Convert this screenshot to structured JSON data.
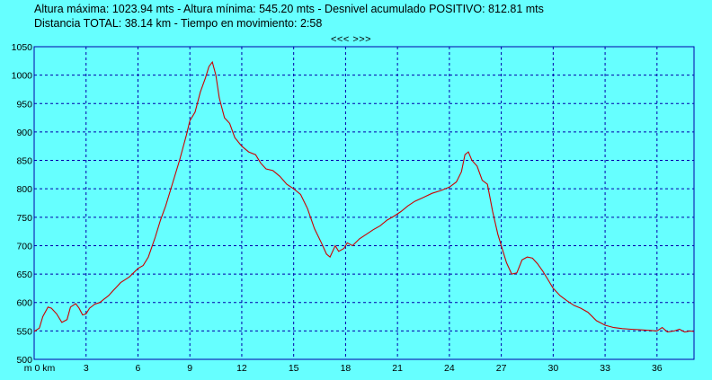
{
  "header": {
    "line1": "Altura máxima: 1023.94 mts - Altura mínima: 545.20 mts - Desnivel acumulado POSITIVO: 812.81 mts",
    "line2": "Distancia TOTAL: 38.14 km - Tiempo en movimiento: 2:58"
  },
  "nav": {
    "label": "<<< >>>"
  },
  "colors": {
    "background": "#66FFFF",
    "line": "#CC0000",
    "grid": "#0000AA"
  },
  "chart_data": {
    "type": "line",
    "title": "",
    "xlabel": "",
    "ylabel": "",
    "xlim": [
      0,
      38.14
    ],
    "ylim": [
      500,
      1050
    ],
    "grid": true,
    "x_ticks": [
      {
        "value": 0,
        "label": "m 0 km"
      },
      {
        "value": 3,
        "label": "3"
      },
      {
        "value": 6,
        "label": "6"
      },
      {
        "value": 9,
        "label": "9"
      },
      {
        "value": 12,
        "label": "12"
      },
      {
        "value": 15,
        "label": "15"
      },
      {
        "value": 18,
        "label": "18"
      },
      {
        "value": 21,
        "label": "21"
      },
      {
        "value": 24,
        "label": "24"
      },
      {
        "value": 27,
        "label": "27"
      },
      {
        "value": 30,
        "label": "30"
      },
      {
        "value": 33,
        "label": "33"
      },
      {
        "value": 36,
        "label": "36"
      }
    ],
    "y_ticks": [
      {
        "value": 500,
        "label": "500"
      },
      {
        "value": 550,
        "label": "550"
      },
      {
        "value": 600,
        "label": "600"
      },
      {
        "value": 650,
        "label": "650"
      },
      {
        "value": 700,
        "label": "700"
      },
      {
        "value": 750,
        "label": "750"
      },
      {
        "value": 800,
        "label": "800"
      },
      {
        "value": 850,
        "label": "850"
      },
      {
        "value": 900,
        "label": "900"
      },
      {
        "value": 950,
        "label": "950"
      },
      {
        "value": 1000,
        "label": "1000"
      },
      {
        "value": 1050,
        "label": "1050"
      }
    ],
    "series": [
      {
        "x": [
          0,
          0.3,
          0.5,
          0.8,
          1.0,
          1.3,
          1.6,
          1.9,
          2.1,
          2.4,
          2.6,
          2.8,
          3.0,
          3.2,
          3.5,
          3.8,
          4.0,
          4.3,
          4.6,
          5.0,
          5.5,
          6.0,
          6.3,
          6.6,
          7.0,
          7.3,
          7.6,
          8.0,
          8.4,
          8.8,
          9.0,
          9.3,
          9.6,
          9.9,
          10.1,
          10.3,
          10.5,
          10.7,
          11.0,
          11.3,
          11.6,
          12.0,
          12.4,
          12.8,
          13.1,
          13.4,
          13.8,
          14.2,
          14.6,
          15.0,
          15.4,
          15.8,
          16.2,
          16.6,
          16.9,
          17.1,
          17.4,
          17.6,
          17.9,
          18.1,
          18.4,
          18.8,
          19.2,
          19.6,
          20.0,
          20.4,
          20.8,
          21.2,
          21.6,
          22.0,
          22.5,
          23.0,
          23.5,
          24.0,
          24.4,
          24.7,
          24.9,
          25.1,
          25.3,
          25.6,
          25.9,
          26.2,
          26.5,
          26.8,
          27.0,
          27.3,
          27.6,
          27.9,
          28.2,
          28.5,
          28.8,
          29.1,
          29.4,
          29.7,
          30.0,
          30.4,
          30.8,
          31.2,
          31.6,
          32.0,
          32.5,
          33.0,
          33.5,
          34.0,
          34.5,
          35.0,
          35.5,
          36.0,
          36.3,
          36.6,
          37.0,
          37.3,
          37.6,
          37.9,
          38.14
        ],
        "y": [
          549,
          555,
          575,
          592,
          590,
          580,
          565,
          570,
          592,
          598,
          590,
          578,
          580,
          590,
          597,
          600,
          605,
          612,
          622,
          635,
          645,
          660,
          665,
          680,
          715,
          745,
          770,
          810,
          850,
          895,
          920,
          935,
          970,
          995,
          1015,
          1023,
          1000,
          960,
          925,
          915,
          890,
          875,
          865,
          860,
          845,
          835,
          832,
          822,
          808,
          800,
          790,
          765,
          730,
          705,
          685,
          680,
          700,
          690,
          695,
          705,
          700,
          712,
          720,
          728,
          735,
          745,
          752,
          760,
          770,
          778,
          785,
          792,
          797,
          803,
          812,
          830,
          860,
          865,
          850,
          840,
          815,
          808,
          760,
          720,
          700,
          670,
          650,
          652,
          675,
          680,
          678,
          668,
          655,
          640,
          625,
          612,
          603,
          595,
          590,
          583,
          568,
          560,
          556,
          554,
          553,
          552,
          551,
          550,
          556,
          548,
          550,
          553,
          548,
          550,
          549
        ]
      }
    ]
  }
}
